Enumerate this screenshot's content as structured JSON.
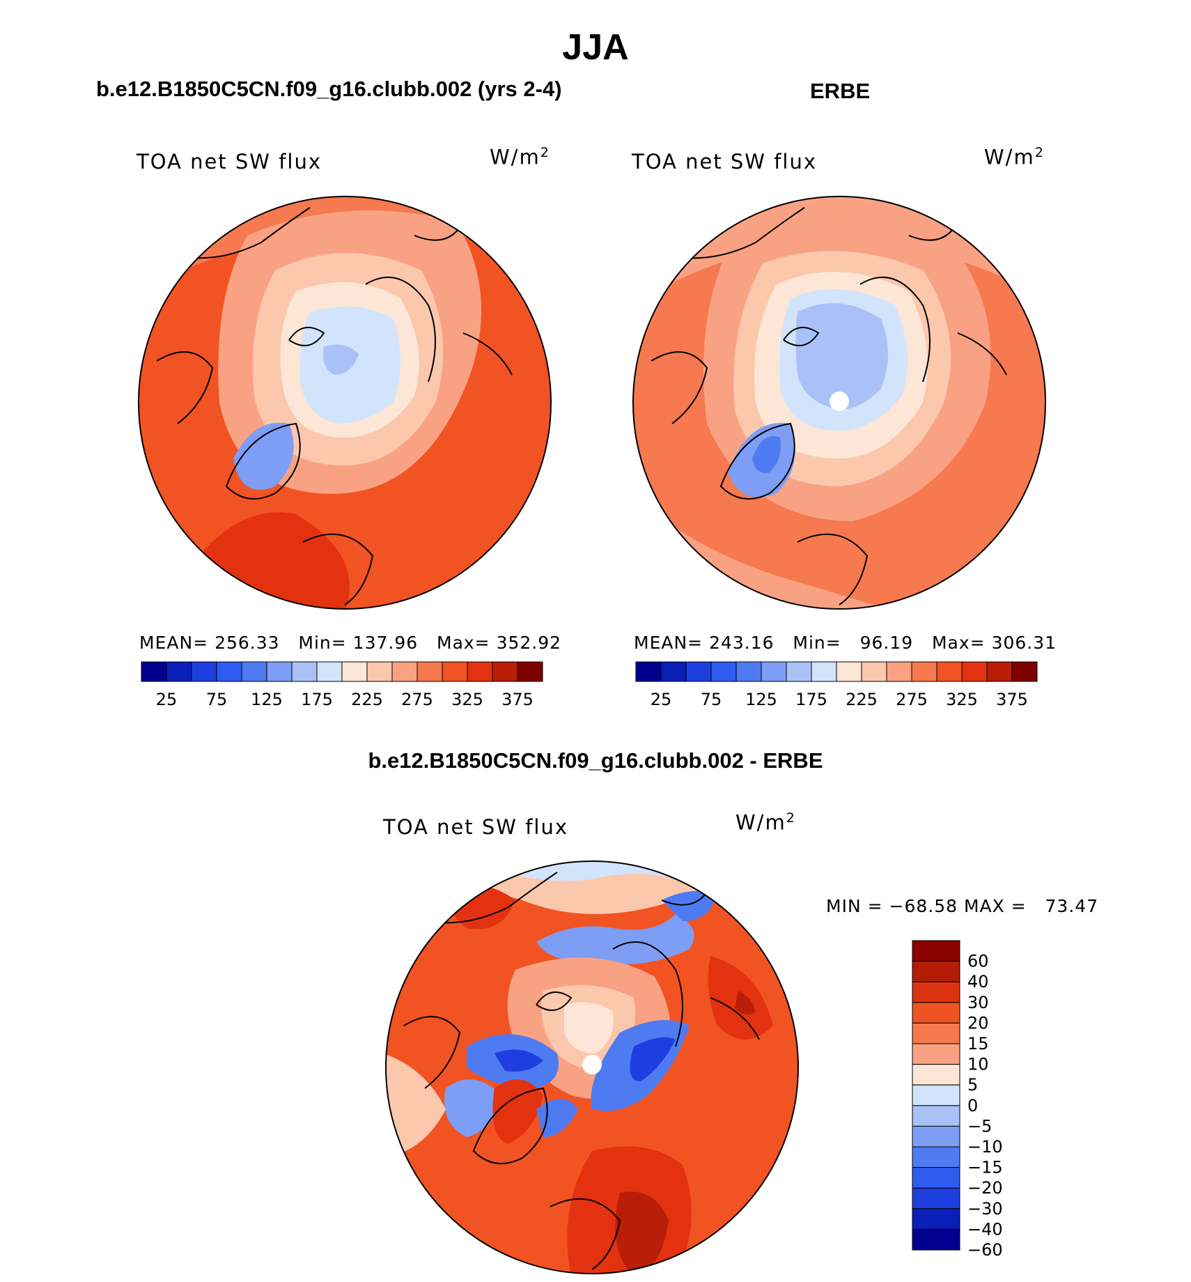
{
  "figure": {
    "season": "JJA",
    "model_title": "b.e12.B1850C5CN.f09_g16.clubb.002 (yrs 2-4)",
    "obs_title": "ERBE",
    "diff_title": "b.e12.B1850C5CN.f09_g16.clubb.002 - ERBE"
  },
  "panels": {
    "model": {
      "variable": "TOA net SW flux",
      "units_base": "W/m",
      "units_exp": "2",
      "stats": {
        "mean_label": "MEAN=",
        "mean": "256.33",
        "min_label": "Min=",
        "min": "137.96",
        "max_label": "Max=",
        "max": "352.92"
      }
    },
    "obs": {
      "variable": "TOA net SW flux",
      "units_base": "W/m",
      "units_exp": "2",
      "stats": {
        "mean_label": "MEAN=",
        "mean": "243.16",
        "min_label": "Min=",
        "min": "96.19",
        "max_label": "Max=",
        "max": "306.31"
      }
    },
    "diff": {
      "variable": "TOA net SW flux",
      "units_base": "W/m",
      "units_exp": "2",
      "stats": {
        "min_label": "MIN =",
        "min": "−68.58",
        "max_label": "MAX =",
        "max": "73.47"
      }
    }
  },
  "colorbars": {
    "abs": {
      "colors": [
        "#00008f",
        "#0a1fb8",
        "#1e3ee0",
        "#2e5cf0",
        "#4f7bf2",
        "#7d9ef4",
        "#a9c1f7",
        "#d2e4fb",
        "#fde6d5",
        "#fbc8ad",
        "#f9a283",
        "#f6794f",
        "#f25323",
        "#e23210",
        "#b81e08",
        "#7f0000"
      ],
      "labels": [
        "25",
        "75",
        "125",
        "175",
        "225",
        "275",
        "325",
        "375"
      ]
    },
    "diff": {
      "colors": [
        "#8b0000",
        "#b51c06",
        "#dc3410",
        "#f05323",
        "#f6794f",
        "#f9a283",
        "#fde6d5",
        "#d2e4fb",
        "#a9c1f7",
        "#7d9ef4",
        "#4f7bf2",
        "#2e5cf0",
        "#1e3ee0",
        "#0a1fb8",
        "#00008f"
      ],
      "labels": [
        "60",
        "40",
        "30",
        "20",
        "15",
        "10",
        "5",
        "0",
        "−5",
        "−10",
        "−15",
        "−20",
        "−30",
        "−40",
        "−60"
      ]
    }
  }
}
